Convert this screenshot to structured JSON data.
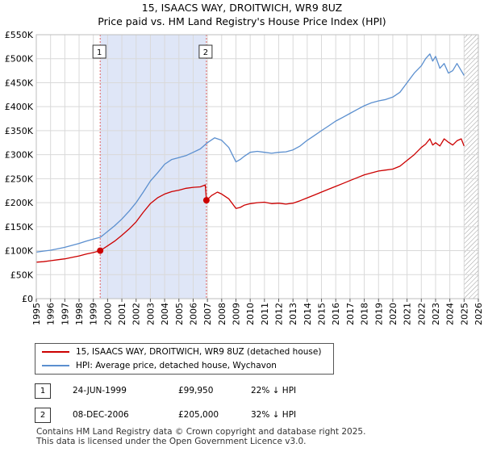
{
  "title_line1": "15, ISAACS WAY, DROITWICH, WR9 8UZ",
  "title_line2": "Price paid vs. HM Land Registry's House Price Index (HPI)",
  "chart_data": {
    "type": "line",
    "title": "15, ISAACS WAY, DROITWICH, WR9 8UZ — Price paid vs. HM Land Registry's House Price Index (HPI)",
    "xlabel": "",
    "ylabel": "",
    "xlim": [
      1995,
      2026
    ],
    "ylim": [
      0,
      550000
    ],
    "grid": true,
    "y_ticks": [
      0,
      50000,
      100000,
      150000,
      200000,
      250000,
      300000,
      350000,
      400000,
      450000,
      500000,
      550000
    ],
    "y_tick_labels": [
      "£0",
      "£50K",
      "£100K",
      "£150K",
      "£200K",
      "£250K",
      "£300K",
      "£350K",
      "£400K",
      "£450K",
      "£500K",
      "£550K"
    ],
    "x_ticks": [
      1995,
      1996,
      1997,
      1998,
      1999,
      2000,
      2001,
      2002,
      2003,
      2004,
      2005,
      2006,
      2007,
      2008,
      2009,
      2010,
      2011,
      2012,
      2013,
      2014,
      2015,
      2016,
      2017,
      2018,
      2019,
      2020,
      2021,
      2022,
      2023,
      2024,
      2025,
      2026
    ],
    "x_tick_labels": [
      "1995",
      "1996",
      "1997",
      "1998",
      "1999",
      "2000",
      "2001",
      "2002",
      "2003",
      "2004",
      "2005",
      "2006",
      "2007",
      "2008",
      "2009",
      "2010",
      "2011",
      "2012",
      "2013",
      "2014",
      "2015",
      "2016",
      "2017",
      "2018",
      "2019",
      "2020",
      "2021",
      "2022",
      "2023",
      "2024",
      "2025",
      "2026"
    ],
    "shaded_ranges": [
      {
        "x0": 1999.48,
        "x1": 2006.93,
        "color": "#dfe6f7"
      }
    ],
    "future_hatch_from": 2025.0,
    "series": [
      {
        "name": "15, ISAACS WAY, DROITWICH, WR9 8UZ (detached house)",
        "color": "#cc0000",
        "x": [
          1995.0,
          1995.5,
          1996.0,
          1996.5,
          1997.0,
          1997.5,
          1998.0,
          1998.5,
          1999.0,
          1999.48,
          2000.0,
          2000.5,
          2001.0,
          2001.5,
          2002.0,
          2002.5,
          2003.0,
          2003.5,
          2004.0,
          2004.5,
          2005.0,
          2005.5,
          2006.0,
          2006.5,
          2006.85,
          2006.93,
          2007.3,
          2007.7,
          2008.0,
          2008.5,
          2009.0,
          2009.3,
          2009.6,
          2010.0,
          2010.5,
          2011.0,
          2011.5,
          2012.0,
          2012.5,
          2013.0,
          2013.5,
          2014.0,
          2014.5,
          2015.0,
          2015.5,
          2016.0,
          2016.5,
          2017.0,
          2017.5,
          2018.0,
          2018.5,
          2019.0,
          2019.5,
          2020.0,
          2020.5,
          2021.0,
          2021.5,
          2022.0,
          2022.3,
          2022.6,
          2022.8,
          2023.0,
          2023.3,
          2023.6,
          2023.9,
          2024.2,
          2024.5,
          2024.8,
          2025.0
        ],
        "values": [
          76000,
          77000,
          79000,
          81000,
          83000,
          86000,
          89000,
          93000,
          96000,
          99950,
          110000,
          120000,
          132000,
          145000,
          160000,
          180000,
          198000,
          210000,
          218000,
          223000,
          226000,
          230000,
          232000,
          233000,
          237000,
          205000,
          215000,
          222000,
          218000,
          208000,
          188000,
          190000,
          195000,
          198000,
          200000,
          201000,
          198000,
          199000,
          197000,
          199000,
          204000,
          210000,
          216000,
          222000,
          228000,
          234000,
          240000,
          246000,
          252000,
          258000,
          262000,
          266000,
          268000,
          270000,
          276000,
          288000,
          300000,
          315000,
          322000,
          333000,
          320000,
          325000,
          318000,
          333000,
          326000,
          320000,
          329000,
          333000,
          318000
        ]
      },
      {
        "name": "HPI: Average price, detached house, Wychavon",
        "color": "#5b8fcf",
        "x": [
          1995.0,
          1995.5,
          1996.0,
          1996.5,
          1997.0,
          1997.5,
          1998.0,
          1998.5,
          1999.0,
          1999.5,
          2000.0,
          2000.5,
          2001.0,
          2001.5,
          2002.0,
          2002.5,
          2003.0,
          2003.5,
          2004.0,
          2004.5,
          2005.0,
          2005.5,
          2006.0,
          2006.5,
          2007.0,
          2007.5,
          2008.0,
          2008.5,
          2009.0,
          2009.3,
          2009.6,
          2010.0,
          2010.5,
          2011.0,
          2011.5,
          2012.0,
          2012.5,
          2013.0,
          2013.5,
          2014.0,
          2014.5,
          2015.0,
          2015.5,
          2016.0,
          2016.5,
          2017.0,
          2017.5,
          2018.0,
          2018.5,
          2019.0,
          2019.5,
          2020.0,
          2020.5,
          2021.0,
          2021.5,
          2022.0,
          2022.3,
          2022.6,
          2022.8,
          2023.0,
          2023.3,
          2023.6,
          2023.9,
          2024.2,
          2024.5,
          2024.8,
          2025.0
        ],
        "values": [
          97000,
          99000,
          101000,
          104000,
          107000,
          111000,
          115000,
          120000,
          124000,
          128000,
          140000,
          152000,
          166000,
          182000,
          200000,
          222000,
          245000,
          262000,
          280000,
          290000,
          294000,
          298000,
          305000,
          312000,
          325000,
          335000,
          330000,
          315000,
          285000,
          290000,
          297000,
          305000,
          307000,
          305000,
          303000,
          305000,
          306000,
          310000,
          318000,
          330000,
          340000,
          350000,
          360000,
          370000,
          378000,
          386000,
          394000,
          402000,
          408000,
          412000,
          415000,
          420000,
          430000,
          450000,
          470000,
          485000,
          500000,
          510000,
          495000,
          505000,
          480000,
          490000,
          470000,
          475000,
          490000,
          475000,
          465000
        ]
      }
    ],
    "sale_points": [
      {
        "x": 1999.48,
        "y": 99950,
        "label": "1"
      },
      {
        "x": 2006.93,
        "y": 205000,
        "label": "2"
      }
    ]
  },
  "legend": {
    "items": [
      {
        "label": "15, ISAACS WAY, DROITWICH, WR9 8UZ (detached house)",
        "color": "#cc0000"
      },
      {
        "label": "HPI: Average price, detached house, Wychavon",
        "color": "#5b8fcf"
      }
    ]
  },
  "transactions": [
    {
      "num": "1",
      "date": "24-JUN-1999",
      "price": "£99,950",
      "hpi": "22% ↓ HPI"
    },
    {
      "num": "2",
      "date": "08-DEC-2006",
      "price": "£205,000",
      "hpi": "32% ↓ HPI"
    }
  ],
  "footer": {
    "line1": "Contains HM Land Registry data © Crown copyright and database right 2025.",
    "line2": "This data is licensed under the Open Government Licence v3.0."
  }
}
